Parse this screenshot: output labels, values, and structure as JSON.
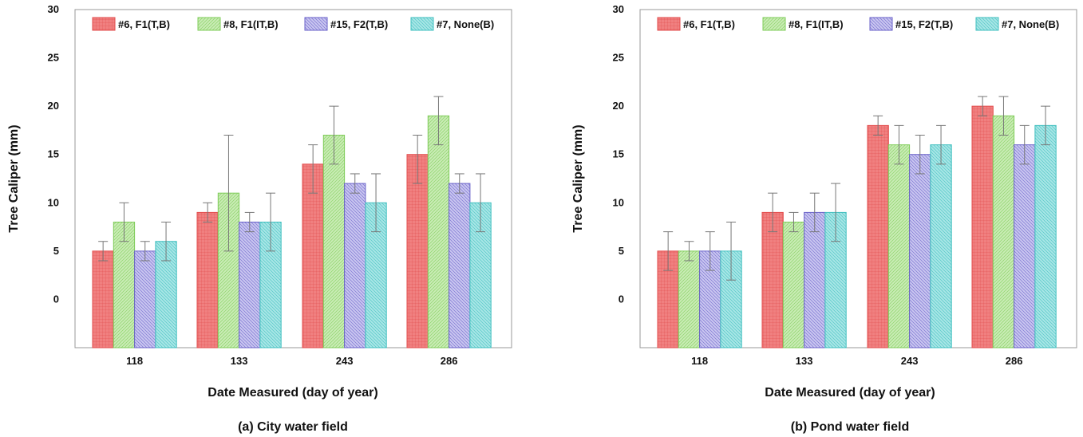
{
  "chart_data": [
    {
      "type": "bar",
      "caption": "(a) City water field",
      "xlabel": "Date Measured (day of year)",
      "ylabel": "Tree Caliper (mm)",
      "ylim": [
        -5,
        30
      ],
      "yticks": [
        0,
        5,
        10,
        15,
        20,
        25,
        30
      ],
      "categories": [
        "118",
        "133",
        "243",
        "286"
      ],
      "legend_position": "top",
      "grid": false,
      "series": [
        {
          "name": "#6, F1(T,B)",
          "color": "#f08080",
          "edge": "#e24b4b",
          "pattern": "grid",
          "values": [
            5,
            9,
            14,
            15
          ],
          "err_low": [
            4,
            8,
            11,
            12
          ],
          "err_high": [
            6,
            10,
            16,
            17
          ]
        },
        {
          "name": "#8, F1(IT,B)",
          "color": "#c9ecb5",
          "edge": "#7fcc59",
          "pattern": "diag-r",
          "values": [
            8,
            11,
            17,
            19
          ],
          "err_low": [
            6,
            5,
            14,
            16
          ],
          "err_high": [
            10,
            17,
            20,
            21
          ]
        },
        {
          "name": "#15, F2(T,B)",
          "color": "#c9c6f0",
          "edge": "#6a62c9",
          "pattern": "diag-l",
          "values": [
            5,
            8,
            12,
            12
          ],
          "err_low": [
            4,
            7,
            11,
            11
          ],
          "err_high": [
            6,
            9,
            13,
            13
          ]
        },
        {
          "name": "#7, None(B)",
          "color": "#a8e6e6",
          "edge": "#3fbfbf",
          "pattern": "diag-l2",
          "values": [
            6,
            8,
            10,
            10
          ],
          "err_low": [
            4,
            5,
            7,
            7
          ],
          "err_high": [
            8,
            11,
            13,
            13
          ]
        }
      ]
    },
    {
      "type": "bar",
      "caption": "(b) Pond water field",
      "xlabel": "Date Measured (day of year)",
      "ylabel": "Tree Caliper (mm)",
      "ylim": [
        -5,
        30
      ],
      "yticks": [
        0,
        5,
        10,
        15,
        20,
        25,
        30
      ],
      "categories": [
        "118",
        "133",
        "243",
        "286"
      ],
      "legend_position": "top",
      "grid": false,
      "series": [
        {
          "name": "#6, F1(T,B)",
          "color": "#f08080",
          "edge": "#e24b4b",
          "pattern": "grid",
          "values": [
            5,
            9,
            18,
            20
          ],
          "err_low": [
            3,
            7,
            17,
            19
          ],
          "err_high": [
            7,
            11,
            19,
            21
          ]
        },
        {
          "name": "#8, F1(IT,B)",
          "color": "#c9ecb5",
          "edge": "#7fcc59",
          "pattern": "diag-r",
          "values": [
            5,
            8,
            16,
            19
          ],
          "err_low": [
            4,
            7,
            14,
            17
          ],
          "err_high": [
            6,
            9,
            18,
            21
          ]
        },
        {
          "name": "#15, F2(T,B)",
          "color": "#c9c6f0",
          "edge": "#6a62c9",
          "pattern": "diag-l",
          "values": [
            5,
            9,
            15,
            16
          ],
          "err_low": [
            3,
            7,
            13,
            14
          ],
          "err_high": [
            7,
            11,
            17,
            18
          ]
        },
        {
          "name": "#7, None(B)",
          "color": "#a8e6e6",
          "edge": "#3fbfbf",
          "pattern": "diag-l2",
          "values": [
            5,
            9,
            16,
            18
          ],
          "err_low": [
            2,
            6,
            14,
            16
          ],
          "err_high": [
            8,
            12,
            18,
            20
          ]
        }
      ]
    }
  ]
}
